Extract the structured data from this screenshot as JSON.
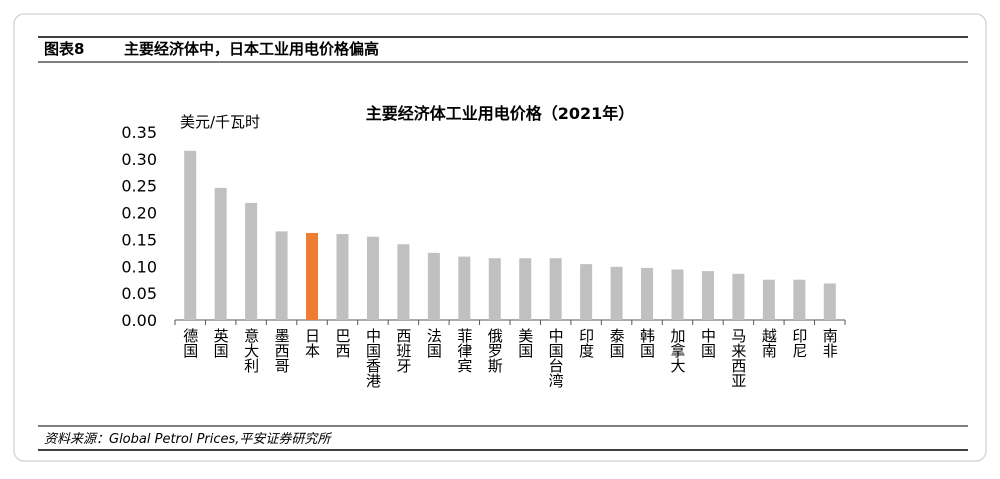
{
  "header": {
    "label": "图表8",
    "title": "主要经济体中，日本工业用电价格偏高"
  },
  "chart_data": {
    "type": "bar",
    "title": "主要经济体工业用电价格（2021年）",
    "y_label": "美元/千瓦时",
    "categories": [
      "德国",
      "英国",
      "意大利",
      "墨西哥",
      "日本",
      "巴西",
      "中国香港",
      "西班牙",
      "法国",
      "菲律宾",
      "俄罗斯",
      "美国",
      "中国台湾",
      "印度",
      "泰国",
      "韩国",
      "加拿大",
      "中国",
      "马来西亚",
      "越南",
      "印尼",
      "南非"
    ],
    "values": [
      0.315,
      0.246,
      0.218,
      0.165,
      0.162,
      0.16,
      0.155,
      0.141,
      0.125,
      0.118,
      0.115,
      0.115,
      0.115,
      0.104,
      0.099,
      0.097,
      0.094,
      0.091,
      0.086,
      0.075,
      0.075,
      0.068
    ],
    "colors": [
      "#c0c0c0",
      "#c0c0c0",
      "#c0c0c0",
      "#c0c0c0",
      "#ed7d31",
      "#c0c0c0",
      "#c0c0c0",
      "#c0c0c0",
      "#c0c0c0",
      "#c0c0c0",
      "#c0c0c0",
      "#c0c0c0",
      "#c0c0c0",
      "#c0c0c0",
      "#c0c0c0",
      "#c0c0c0",
      "#c0c0c0",
      "#c0c0c0",
      "#c0c0c0",
      "#c0c0c0",
      "#c0c0c0",
      "#c0c0c0"
    ],
    "ylim": [
      0,
      0.35
    ],
    "yticks": [
      {
        "value": 0,
        "label": "0.00"
      },
      0.05,
      {
        "value": 0.1,
        "label": "0.10"
      },
      0.15,
      {
        "value": 0.2,
        "label": "0.20"
      },
      0.25,
      {
        "value": 0.3,
        "label": "0.30"
      },
      0.35
    ],
    "grid": false
  },
  "footer": {
    "source": "资料来源：Global Petrol Prices,平安证券研究所"
  }
}
